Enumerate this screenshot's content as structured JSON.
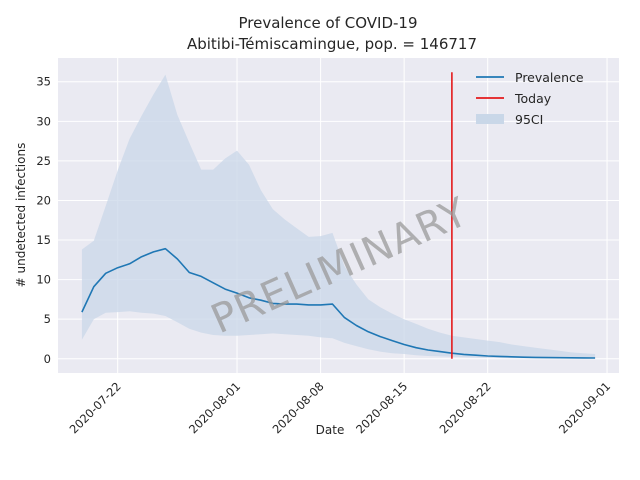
{
  "chart_data": {
    "type": "line",
    "title": "Prevalence of COVID-19",
    "subtitle": "Abitibi-Témiscamingue, pop. = 146717",
    "xlabel": "Date",
    "ylabel": "# undetected infections",
    "watermark": "PRELIMINARY",
    "xlim": [
      "2020-07-17",
      "2020-09-02"
    ],
    "ylim": [
      -1.8,
      38
    ],
    "yticks": [
      0,
      5,
      10,
      15,
      20,
      25,
      30,
      35
    ],
    "xticks": [
      "2020-07-22",
      "2020-08-01",
      "2020-08-08",
      "2020-08-15",
      "2020-08-22",
      "2020-09-01"
    ],
    "grid": true,
    "legend_position": "top-right",
    "colors": {
      "prevalence": "#1f77b4",
      "today": "#e41a1c",
      "ci": "#c9d7e8",
      "background": "#eaeaf2"
    },
    "series": [
      {
        "name": "Prevalence",
        "x": [
          "2020-07-19",
          "2020-07-20",
          "2020-07-21",
          "2020-07-22",
          "2020-07-23",
          "2020-07-24",
          "2020-07-25",
          "2020-07-26",
          "2020-07-27",
          "2020-07-28",
          "2020-07-29",
          "2020-07-30",
          "2020-07-31",
          "2020-08-01",
          "2020-08-02",
          "2020-08-03",
          "2020-08-04",
          "2020-08-05",
          "2020-08-06",
          "2020-08-07",
          "2020-08-08",
          "2020-08-09",
          "2020-08-10",
          "2020-08-11",
          "2020-08-12",
          "2020-08-13",
          "2020-08-14",
          "2020-08-15",
          "2020-08-16",
          "2020-08-17",
          "2020-08-18",
          "2020-08-19",
          "2020-08-20",
          "2020-08-21",
          "2020-08-22",
          "2020-08-23",
          "2020-08-24",
          "2020-08-25",
          "2020-08-26",
          "2020-08-27",
          "2020-08-28",
          "2020-08-29",
          "2020-08-30",
          "2020-08-31"
        ],
        "y": [
          5.9,
          9.1,
          10.8,
          11.5,
          12.0,
          12.9,
          13.5,
          13.9,
          12.6,
          10.9,
          10.4,
          9.6,
          8.8,
          8.3,
          7.7,
          7.4,
          7.0,
          6.9,
          6.9,
          6.8,
          6.8,
          6.9,
          5.2,
          4.2,
          3.4,
          2.8,
          2.3,
          1.8,
          1.4,
          1.1,
          0.9,
          0.7,
          0.55,
          0.45,
          0.35,
          0.3,
          0.25,
          0.2,
          0.17,
          0.15,
          0.13,
          0.12,
          0.11,
          0.1
        ]
      },
      {
        "name": "95CI",
        "x": [
          "2020-07-19",
          "2020-07-20",
          "2020-07-21",
          "2020-07-22",
          "2020-07-23",
          "2020-07-24",
          "2020-07-25",
          "2020-07-26",
          "2020-07-27",
          "2020-07-28",
          "2020-07-29",
          "2020-07-30",
          "2020-07-31",
          "2020-08-01",
          "2020-08-02",
          "2020-08-03",
          "2020-08-04",
          "2020-08-05",
          "2020-08-06",
          "2020-08-07",
          "2020-08-08",
          "2020-08-09",
          "2020-08-10",
          "2020-08-11",
          "2020-08-12",
          "2020-08-13",
          "2020-08-14",
          "2020-08-15",
          "2020-08-16",
          "2020-08-17",
          "2020-08-18",
          "2020-08-19",
          "2020-08-20",
          "2020-08-21",
          "2020-08-22",
          "2020-08-23",
          "2020-08-24",
          "2020-08-25",
          "2020-08-26",
          "2020-08-27",
          "2020-08-28",
          "2020-08-29",
          "2020-08-30",
          "2020-08-31"
        ],
        "lower": [
          2.4,
          5.0,
          5.8,
          5.9,
          6.0,
          5.8,
          5.7,
          5.4,
          4.6,
          3.8,
          3.3,
          3.0,
          2.9,
          2.9,
          3.0,
          3.1,
          3.2,
          3.1,
          3.0,
          2.9,
          2.7,
          2.6,
          2.0,
          1.6,
          1.2,
          0.9,
          0.7,
          0.6,
          0.45,
          0.35,
          0.3,
          0.25,
          0.2,
          0.15,
          0.12,
          0.1,
          0.08,
          0.07,
          0.06,
          0.05,
          0.05,
          0.04,
          0.04,
          0.03
        ],
        "upper": [
          13.8,
          14.9,
          19.3,
          23.8,
          27.8,
          30.7,
          33.4,
          35.9,
          30.8,
          27.3,
          23.9,
          23.9,
          25.3,
          26.3,
          24.5,
          21.3,
          18.9,
          17.6,
          16.5,
          15.4,
          15.5,
          15.9,
          11.7,
          9.4,
          7.5,
          6.5,
          5.7,
          5.0,
          4.4,
          3.8,
          3.3,
          2.9,
          2.7,
          2.5,
          2.3,
          2.1,
          1.8,
          1.6,
          1.4,
          1.2,
          1.0,
          0.8,
          0.7,
          0.6
        ]
      }
    ],
    "today": {
      "name": "Today",
      "x": "2020-08-19",
      "y_range": [
        0,
        36.2
      ]
    },
    "legend": [
      {
        "label": "Prevalence",
        "kind": "line"
      },
      {
        "label": "Today",
        "kind": "line"
      },
      {
        "label": "95CI",
        "kind": "patch"
      }
    ]
  }
}
